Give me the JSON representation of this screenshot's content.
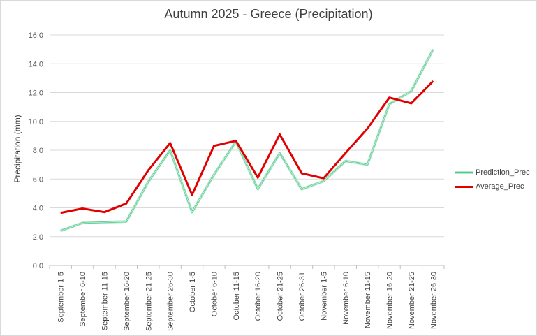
{
  "chart_data": {
    "type": "line",
    "title": "Autumn 2025 - Greece (Precipitation)",
    "xlabel": "",
    "ylabel": "Precipitation (mm)",
    "ylim": [
      0,
      16
    ],
    "yticks": [
      "0.0",
      "2.0",
      "4.0",
      "6.0",
      "8.0",
      "10.0",
      "12.0",
      "14.0",
      "16.0"
    ],
    "grid": true,
    "legend_position": "right",
    "categories": [
      "September 1-5",
      "September 6-10",
      "September 11-15",
      "September 16-20",
      "September 21-25",
      "September 26-30",
      "October 1-5",
      "October 6-10",
      "October 11-15",
      "October 16-20",
      "October 21-25",
      "October 26-31",
      "November 1-5",
      "November 6-10",
      "November 11-15",
      "November 16-20",
      "November 21-25",
      "November 26-30"
    ],
    "series": [
      {
        "name": "Prediction_Prec",
        "color": "#4fc58a",
        "values": [
          2.4,
          2.95,
          3.0,
          3.05,
          5.8,
          8.0,
          3.7,
          6.3,
          8.6,
          5.3,
          7.8,
          5.3,
          5.85,
          7.25,
          7.0,
          11.2,
          12.1,
          15.0
        ]
      },
      {
        "name": "Average_Prec",
        "color": "#e00000",
        "values": [
          3.65,
          3.95,
          3.7,
          4.3,
          6.6,
          8.5,
          4.9,
          8.3,
          8.65,
          6.1,
          9.1,
          6.4,
          6.05,
          7.8,
          9.5,
          11.65,
          11.25,
          12.8
        ]
      }
    ]
  }
}
